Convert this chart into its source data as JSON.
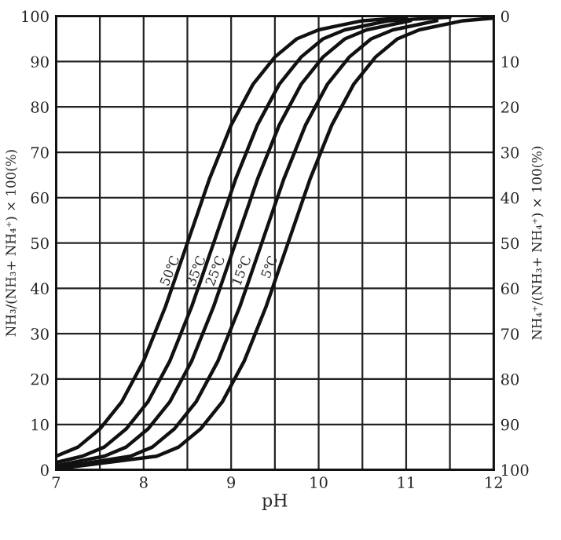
{
  "chart_data": {
    "type": "line",
    "xlabel": "pH",
    "ylabel": "NH₃/(NH₃+ NH₄⁺) × 100(%)",
    "y2label": "NH₄⁺/(NH₃+ NH₄⁺) × 100(%)",
    "xlim": [
      7,
      12
    ],
    "xticks": [
      7,
      {
        "value": 7.5,
        "label": null
      },
      8,
      {
        "value": 8.5,
        "label": null
      },
      9,
      {
        "value": 9.5,
        "label": null
      },
      10,
      {
        "value": 10.5,
        "label": null
      },
      11,
      {
        "value": 11.5,
        "label": null
      },
      12
    ],
    "ylim": [
      0,
      100
    ],
    "yticks": [
      0,
      10,
      20,
      30,
      40,
      50,
      60,
      70,
      80,
      90,
      100
    ],
    "y2lim": [
      100,
      0
    ],
    "y2ticks": [
      0,
      10,
      20,
      30,
      40,
      50,
      60,
      70,
      80,
      90,
      100
    ],
    "grid": true,
    "line_style": "solid",
    "series": [
      {
        "color": "#111111",
        "x": [
          7,
          7.25,
          7.5,
          7.75,
          8,
          8.25,
          8.5,
          8.75,
          9,
          9.25,
          9.5,
          9.75,
          10,
          10.25,
          10.5,
          11
        ],
        "values": [
          3,
          5,
          9,
          15,
          24,
          36,
          50,
          64,
          76,
          85,
          91,
          95,
          97,
          98,
          99,
          99.7
        ]
      },
      {
        "color": "#111111",
        "x": [
          7,
          7.3,
          7.55,
          7.8,
          8.05,
          8.3,
          8.55,
          8.8,
          9.05,
          9.3,
          9.55,
          9.8,
          10.05,
          10.3,
          10.8,
          11.5
        ],
        "values": [
          1.6,
          3,
          5,
          9,
          15,
          24,
          36,
          50,
          64,
          76,
          85,
          91,
          95,
          97,
          99,
          99.8
        ]
      },
      {
        "color": "#111111",
        "x": [
          7,
          7.55,
          7.8,
          8.05,
          8.3,
          8.55,
          8.8,
          9.05,
          9.3,
          9.55,
          9.8,
          10.05,
          10.3,
          10.55,
          11.05
        ],
        "values": [
          0.9,
          3,
          5,
          9,
          15,
          24,
          36,
          50,
          64,
          76,
          85,
          91,
          95,
          97,
          99
        ]
      },
      {
        "color": "#111111",
        "x": [
          7,
          7.85,
          8.1,
          8.35,
          8.6,
          8.85,
          9.1,
          9.35,
          9.6,
          9.85,
          10.1,
          10.35,
          10.6,
          10.85,
          11.35
        ],
        "values": [
          0.4,
          3,
          5,
          9,
          15,
          24,
          36,
          50,
          64,
          76,
          85,
          91,
          95,
          97,
          99
        ]
      },
      {
        "color": "#111111",
        "x": [
          7,
          8.15,
          8.4,
          8.65,
          8.9,
          9.15,
          9.4,
          9.65,
          9.9,
          10.15,
          10.4,
          10.65,
          10.9,
          11.15,
          11.65,
          12
        ],
        "values": [
          0.2,
          3,
          5,
          9,
          15,
          24,
          36,
          50,
          64,
          76,
          85,
          91,
          95,
          97,
          99,
          99.6
        ]
      }
    ],
    "annotations": [
      {
        "text": "50℃",
        "x": 8.45,
        "y": 47
      },
      {
        "text": "35℃",
        "x": 8.75,
        "y": 47
      },
      {
        "text": "25℃",
        "x": 8.97,
        "y": 47
      },
      {
        "text": "15℃",
        "x": 9.27,
        "y": 47
      },
      {
        "text": "5℃",
        "x": 9.57,
        "y": 47
      }
    ]
  }
}
